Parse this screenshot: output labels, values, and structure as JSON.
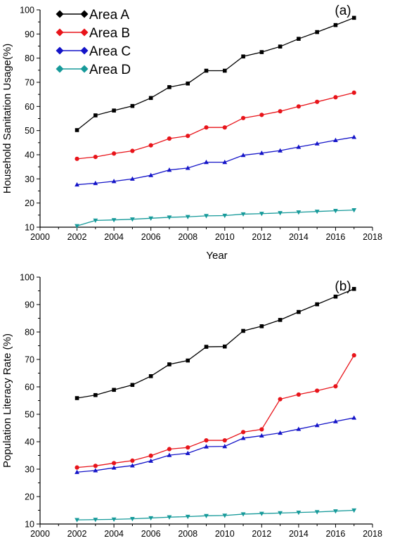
{
  "chart_data": [
    {
      "type": "line",
      "panel_label": "(a)",
      "title": "",
      "xlabel": "Year",
      "ylabel": "Household Sanitation Usage(%)",
      "xlim": [
        2000,
        2018
      ],
      "ylim": [
        10,
        100
      ],
      "xticks": [
        "2000",
        "2002",
        "2004",
        "2006",
        "2008",
        "2010",
        "2012",
        "2014",
        "2016",
        "2018"
      ],
      "yticks": [
        "10",
        "20",
        "30",
        "40",
        "50",
        "60",
        "70",
        "80",
        "90",
        "100"
      ],
      "legend": "top-left",
      "grid": false,
      "x": [
        2002,
        2003,
        2004,
        2005,
        2006,
        2007,
        2008,
        2009,
        2010,
        2011,
        2012,
        2013,
        2014,
        2015,
        2016,
        2017
      ],
      "series": [
        {
          "name": "Area A",
          "color": "#000000",
          "marker": "square",
          "values": [
            50.2,
            56.3,
            58.3,
            60.2,
            63.5,
            68.0,
            69.5,
            74.8,
            74.8,
            80.7,
            82.5,
            84.8,
            88.0,
            90.8,
            93.7,
            96.7
          ]
        },
        {
          "name": "Area B",
          "color": "#e8141a",
          "marker": "circle",
          "values": [
            38.3,
            39.1,
            40.5,
            41.6,
            43.9,
            46.7,
            47.8,
            51.3,
            51.3,
            55.2,
            56.5,
            58.0,
            60.0,
            61.9,
            63.8,
            65.7
          ]
        },
        {
          "name": "Area C",
          "color": "#1414c8",
          "marker": "triangle-up",
          "values": [
            27.6,
            28.2,
            29.0,
            30.0,
            31.5,
            33.7,
            34.5,
            36.9,
            36.9,
            39.8,
            40.7,
            41.7,
            43.2,
            44.6,
            46.0,
            47.3
          ]
        },
        {
          "name": "Area D",
          "color": "#169a9a",
          "marker": "triangle-down",
          "values": [
            10.5,
            12.8,
            13.0,
            13.3,
            13.7,
            14.1,
            14.3,
            14.7,
            14.8,
            15.4,
            15.6,
            15.9,
            16.2,
            16.5,
            16.8,
            17.1
          ]
        }
      ]
    },
    {
      "type": "line",
      "panel_label": "(b)",
      "title": "",
      "xlabel": "",
      "ylabel": "Population Literacy Rate (%)",
      "xlim": [
        2000,
        2018
      ],
      "ylim": [
        10,
        100
      ],
      "xticks": [
        "2000",
        "2002",
        "2004",
        "2006",
        "2008",
        "2010",
        "2012",
        "2014",
        "2016",
        "2018"
      ],
      "yticks": [
        "10",
        "20",
        "30",
        "40",
        "50",
        "60",
        "70",
        "80",
        "90",
        "100"
      ],
      "legend": "none",
      "grid": false,
      "x": [
        2002,
        2003,
        2004,
        2005,
        2006,
        2007,
        2008,
        2009,
        2010,
        2011,
        2012,
        2013,
        2014,
        2015,
        2016,
        2017
      ],
      "series": [
        {
          "color": "#000000",
          "marker": "square",
          "values": [
            55.9,
            57.0,
            58.9,
            60.7,
            63.9,
            68.2,
            69.6,
            74.6,
            74.7,
            80.4,
            82.1,
            84.4,
            87.3,
            90.1,
            92.9,
            95.7
          ]
        },
        {
          "color": "#e8141a",
          "marker": "circle",
          "values": [
            30.6,
            31.2,
            32.2,
            33.1,
            34.9,
            37.3,
            37.9,
            40.5,
            40.5,
            43.5,
            44.5,
            55.5,
            57.2,
            58.6,
            60.2,
            71.5
          ]
        },
        {
          "color": "#1414c8",
          "marker": "triangle-up",
          "values": [
            28.9,
            29.5,
            30.5,
            31.3,
            33.0,
            35.1,
            35.8,
            38.2,
            38.3,
            41.3,
            42.2,
            43.2,
            44.6,
            46.0,
            47.4,
            48.7
          ]
        },
        {
          "color": "#169a9a",
          "marker": "triangle-down",
          "values": [
            11.5,
            11.6,
            11.7,
            11.9,
            12.2,
            12.5,
            12.7,
            13.0,
            13.1,
            13.6,
            13.8,
            14.0,
            14.2,
            14.4,
            14.7,
            15.0
          ]
        }
      ]
    }
  ]
}
